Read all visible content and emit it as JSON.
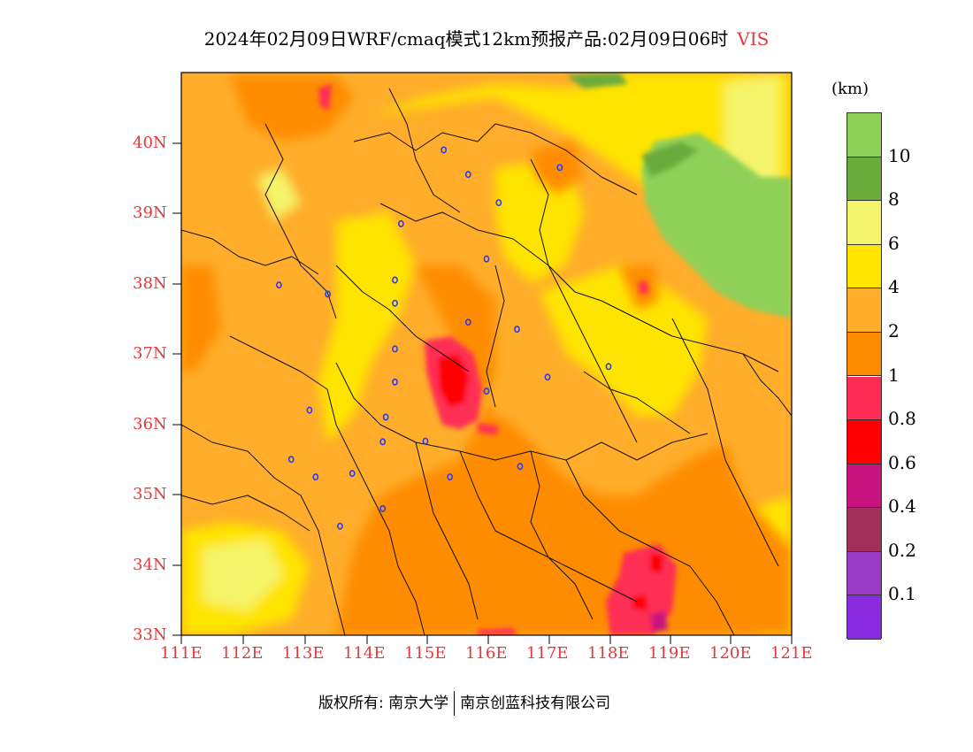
{
  "title": "2024年02月09日WRF/cmaq模式12km预报产品:02月09日06时",
  "variable": "VIS",
  "unit": "(km)",
  "legend": {
    "labels": [
      "10",
      "8",
      "6",
      "4",
      "2",
      "1",
      "0.8",
      "0.6",
      "0.4",
      "0.2",
      "0.1"
    ],
    "colors": [
      "#8fd058",
      "#6aab3c",
      "#f4f46a",
      "#ffe400",
      "#ffad2a",
      "#ff8c00",
      "#ff2d55",
      "#ff0000",
      "#c8127e",
      "#a0305a",
      "#9a3cc8",
      "#8a2be2"
    ]
  },
  "axes": {
    "x_ticks": [
      "111E",
      "112E",
      "113E",
      "114E",
      "115E",
      "116E",
      "117E",
      "118E",
      "119E",
      "120E",
      "121E"
    ],
    "y_ticks": [
      "40N",
      "39N",
      "38N",
      "37N",
      "36N",
      "35N",
      "34N",
      "33N"
    ]
  },
  "footer": {
    "left": "版权所有: 南京大学",
    "right": "南京创蓝科技有限公司"
  },
  "cities": [
    {
      "lon": 115.3,
      "lat": 39.9
    },
    {
      "lon": 115.7,
      "lat": 39.55
    },
    {
      "lon": 116.2,
      "lat": 39.15
    },
    {
      "lon": 117.2,
      "lat": 39.65
    },
    {
      "lon": 114.6,
      "lat": 38.85
    },
    {
      "lon": 116.0,
      "lat": 38.35
    },
    {
      "lon": 112.6,
      "lat": 37.98
    },
    {
      "lon": 113.4,
      "lat": 37.85
    },
    {
      "lon": 114.5,
      "lat": 38.05
    },
    {
      "lon": 114.5,
      "lat": 37.72
    },
    {
      "lon": 115.7,
      "lat": 37.45
    },
    {
      "lon": 116.5,
      "lat": 37.35
    },
    {
      "lon": 114.5,
      "lat": 37.07
    },
    {
      "lon": 116.0,
      "lat": 36.47
    },
    {
      "lon": 114.5,
      "lat": 36.6
    },
    {
      "lon": 117.0,
      "lat": 36.67
    },
    {
      "lon": 118.0,
      "lat": 36.82
    },
    {
      "lon": 113.1,
      "lat": 36.2
    },
    {
      "lon": 114.35,
      "lat": 36.1
    },
    {
      "lon": 114.3,
      "lat": 35.75
    },
    {
      "lon": 115.0,
      "lat": 35.76
    },
    {
      "lon": 112.8,
      "lat": 35.5
    },
    {
      "lon": 113.2,
      "lat": 35.25
    },
    {
      "lon": 113.8,
      "lat": 35.3
    },
    {
      "lon": 115.4,
      "lat": 35.25
    },
    {
      "lon": 116.55,
      "lat": 35.4
    },
    {
      "lon": 114.3,
      "lat": 34.8
    },
    {
      "lon": 113.6,
      "lat": 34.55
    }
  ]
}
